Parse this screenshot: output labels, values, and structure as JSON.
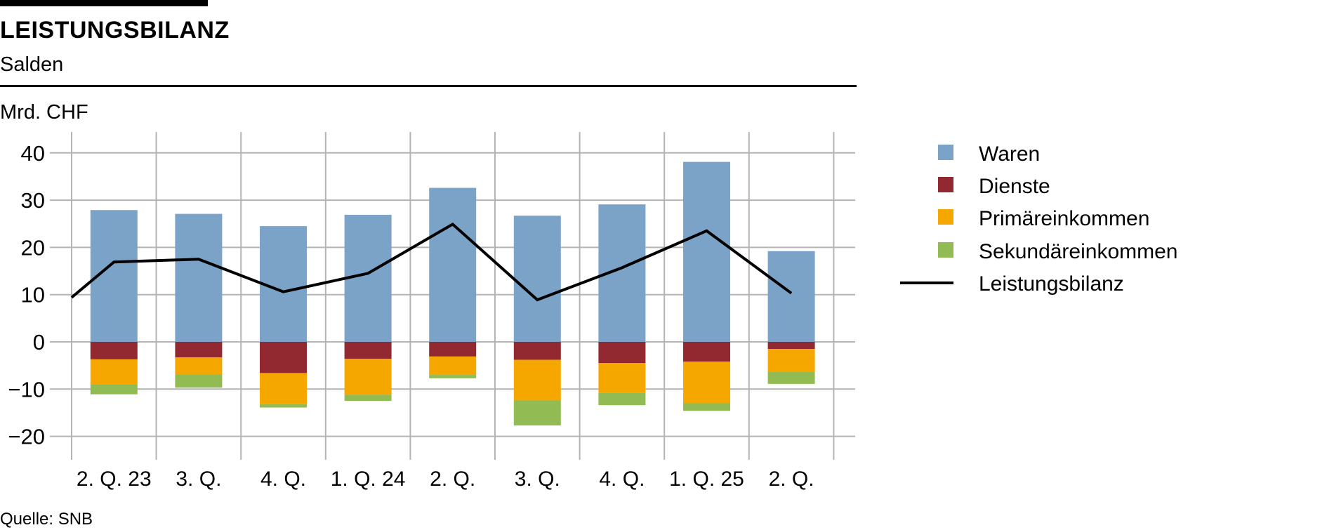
{
  "header": {
    "title": "LEISTUNGSBILANZ",
    "subtitle": "Salden"
  },
  "footer": {
    "source": "Quelle: SNB"
  },
  "chart_data": {
    "type": "bar",
    "stacked": true,
    "title": "LEISTUNGSBILANZ",
    "subtitle": "Salden",
    "ylabel": "Mrd. CHF",
    "xlabel": "",
    "ylim": [
      -25,
      45
    ],
    "yticks": [
      40,
      30,
      20,
      10,
      0,
      -10,
      -20
    ],
    "ytick_labels": [
      "40",
      "30",
      "20",
      "10",
      "0",
      "−10",
      "−20"
    ],
    "grid": true,
    "legend_position": "right",
    "categories": [
      "2. Q. 23",
      "3. Q.",
      "4. Q.",
      "1. Q. 24",
      "2. Q.",
      "3. Q.",
      "4. Q.",
      "1. Q. 25",
      "2. Q."
    ],
    "series": [
      {
        "name": "Waren",
        "color": "#7ba3c7",
        "values": [
          27.9,
          27.1,
          24.5,
          26.9,
          32.6,
          26.7,
          29.1,
          38.1,
          19.2
        ]
      },
      {
        "name": "Dienste",
        "color": "#922830",
        "values": [
          -3.7,
          -3.3,
          -6.6,
          -3.6,
          -3.1,
          -3.8,
          -4.5,
          -4.2,
          -1.5
        ]
      },
      {
        "name": "Primäreinkommen",
        "color": "#f5a700",
        "values": [
          -5.3,
          -3.6,
          -6.6,
          -7.6,
          -3.9,
          -8.6,
          -6.3,
          -8.8,
          -4.8
        ]
      },
      {
        "name": "Sekundäreinkommen",
        "color": "#92bb53",
        "values": [
          -2.1,
          -2.8,
          -0.7,
          -1.3,
          -0.7,
          -5.3,
          -2.6,
          -1.6,
          -2.6
        ]
      }
    ],
    "line": {
      "name": "Leistungsbilanz",
      "color": "#000000",
      "start_value_at_left_edge": 9.4,
      "values": [
        16.9,
        17.5,
        10.6,
        14.5,
        24.9,
        8.9,
        15.7,
        23.5,
        10.3
      ]
    }
  }
}
